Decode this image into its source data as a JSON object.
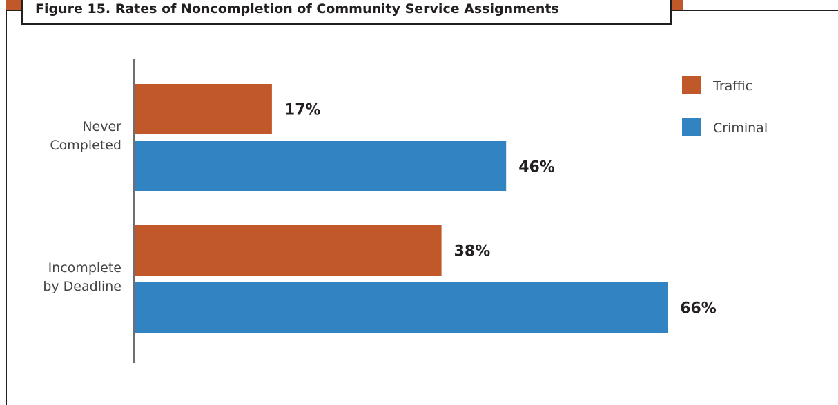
{
  "title": "Figure 15. Rates of Noncompletion of Community Service Assignments",
  "colors": {
    "traffic": "#c1582a",
    "criminal": "#3184c1",
    "frame": "#231f20",
    "text": "#231f20",
    "label": "#444444"
  },
  "chart_data": {
    "type": "bar",
    "orientation": "horizontal",
    "title": "Figure 15. Rates of Noncompletion of Community Service Assignments",
    "categories": [
      "Never\nCompleted",
      "Incomplete\nby Deadline"
    ],
    "series": [
      {
        "name": "Traffic",
        "values": [
          17,
          38
        ],
        "labels": [
          "17%",
          "38%"
        ],
        "color": "#c1582a"
      },
      {
        "name": "Criminal",
        "values": [
          46,
          66
        ],
        "labels": [
          "46%",
          "66%"
        ],
        "color": "#3184c1"
      }
    ],
    "xlim": [
      0,
      100
    ],
    "grid": false,
    "legend": "top-right"
  }
}
